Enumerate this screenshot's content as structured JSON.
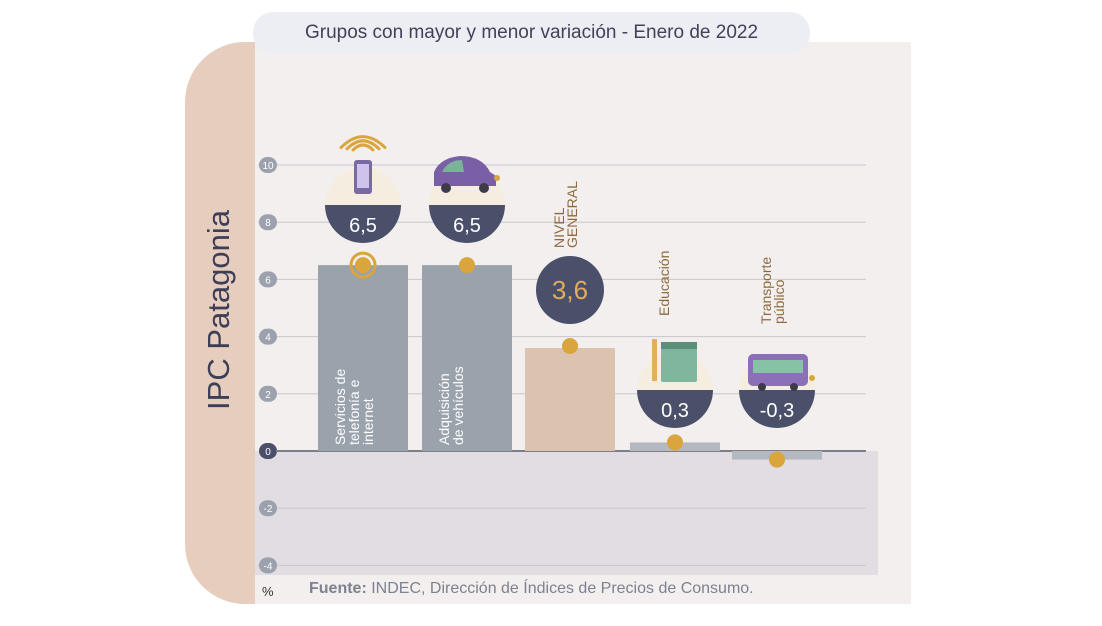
{
  "side_title": "IPC Patagonia",
  "chart_data": {
    "type": "bar",
    "title": "Grupos con mayor y menor variación - Enero de 2022",
    "unit": "%",
    "ylim": [
      -4,
      10
    ],
    "yticks": [
      "10",
      "8",
      "6",
      "4",
      "2",
      "0",
      "-2",
      "-4"
    ],
    "grid": true,
    "categories": [
      {
        "name": "Servicios de telefonía e internet",
        "value": 6.5,
        "label": "6,5",
        "icon": "smartphone-wifi-icon"
      },
      {
        "name": "Adquisición de vehículos",
        "value": 6.5,
        "label": "6,5",
        "icon": "car-icon"
      },
      {
        "name": "NIVEL GENERAL",
        "value": 3.6,
        "label": "3,6",
        "icon": ""
      },
      {
        "name": "Educación",
        "value": 0.3,
        "label": "0,3",
        "icon": "book-pencil-icon"
      },
      {
        "name": "Transporte público",
        "value": -0.3,
        "label": "-0,3",
        "icon": "bus-icon"
      }
    ],
    "colors": {
      "bar_primary": "#9aa2ac",
      "bar_general": "#dcc3b0",
      "dot": "#d9a53c",
      "badge": "#4a5069",
      "badge_text_general": "#e0ad5c"
    }
  },
  "source": {
    "label": "Fuente:",
    "text": " INDEC, Dirección de Índices de Precios de Consumo."
  }
}
